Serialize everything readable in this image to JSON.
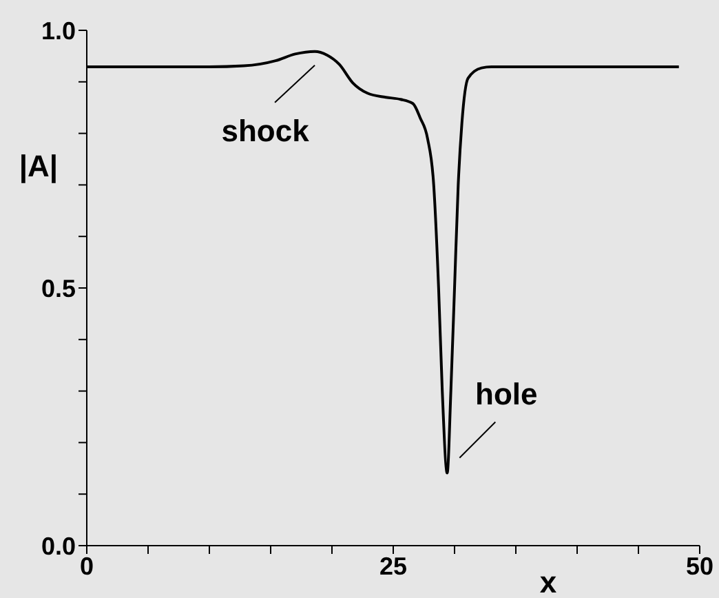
{
  "chart_data": {
    "type": "line",
    "xlabel": "x",
    "ylabel": "|A|",
    "xlim": [
      0,
      50
    ],
    "xticks": [
      0,
      {
        "value": 5,
        "label": null
      },
      {
        "value": 10,
        "label": null
      },
      {
        "value": 15,
        "label": null
      },
      {
        "value": 20,
        "label": null
      },
      25,
      {
        "value": 30,
        "label": null
      },
      {
        "value": 35,
        "label": null
      },
      {
        "value": 40,
        "label": null
      },
      {
        "value": 45,
        "label": null
      },
      50
    ],
    "ylim": [
      0,
      1
    ],
    "yticks": [
      {
        "value": 0,
        "label": "0.0"
      },
      {
        "value": 0.1,
        "label": null
      },
      {
        "value": 0.2,
        "label": null
      },
      {
        "value": 0.3,
        "label": null
      },
      {
        "value": 0.4,
        "label": null
      },
      {
        "value": 0.5,
        "label": "0.5"
      },
      {
        "value": 0.6,
        "label": null
      },
      {
        "value": 0.7,
        "label": null
      },
      {
        "value": 0.8,
        "label": null
      },
      {
        "value": 0.9,
        "label": null
      },
      {
        "value": 1,
        "label": "1.0"
      }
    ],
    "grid": false,
    "marker": "none",
    "line_style": "solid",
    "series": [
      {
        "color": "#000000",
        "x": [
          0,
          10,
          12.8,
          15.4,
          17,
          18.6,
          19.6,
          20.6,
          21.7,
          22.9,
          24.4,
          25.6,
          26.6,
          27.2,
          27.8,
          28.3,
          28.7,
          29.0,
          29.4,
          29.7,
          30.0,
          30.3,
          30.6,
          31.1,
          32.2,
          33,
          48.3
        ],
        "values": [
          0.929,
          0.929,
          0.931,
          0.941,
          0.954,
          0.959,
          0.952,
          0.934,
          0.898,
          0.878,
          0.87,
          0.866,
          0.858,
          0.83,
          0.79,
          0.7,
          0.5,
          0.3,
          0.141,
          0.3,
          0.5,
          0.7,
          0.82,
          0.907,
          0.927,
          0.929,
          0.929
        ]
      }
    ],
    "annotations": [
      {
        "text": "shock",
        "x": 18.6,
        "y": 0.959
      },
      {
        "text": "hole",
        "x": 29.4,
        "y": 0.141
      }
    ]
  }
}
